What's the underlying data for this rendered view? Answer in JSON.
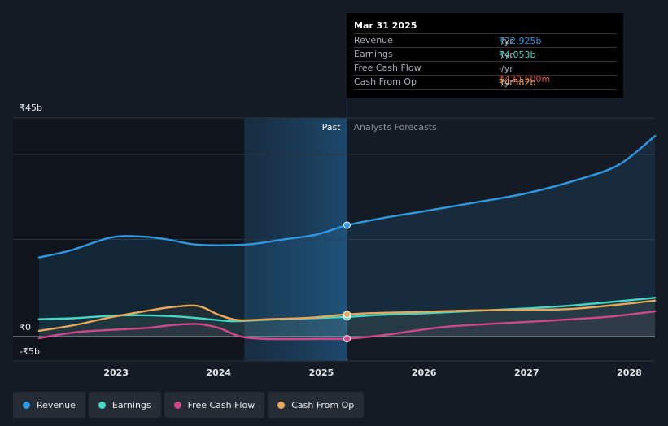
{
  "chart_data": {
    "type": "line",
    "currency_unit": "₹ billions",
    "y_axis": {
      "ylim": [
        -5,
        45
      ],
      "ticks": [
        {
          "value": 45,
          "label": "₹45b"
        },
        {
          "value": 0,
          "label": "₹0"
        },
        {
          "value": -5,
          "label": "-₹5b"
        }
      ]
    },
    "x_axis": {
      "range": [
        2022.25,
        2028.25
      ],
      "ticks": [
        "2023",
        "2024",
        "2025",
        "2026",
        "2027",
        "2028"
      ]
    },
    "past_label": "Past",
    "forecast_label": "Analysts Forecasts",
    "past_region_start": 2024.25,
    "divider_x": 2025.25,
    "series": [
      {
        "name": "Revenue",
        "color": "#2e98e2",
        "area": true,
        "points": [
          [
            2022.25,
            16.3
          ],
          [
            2022.55,
            17.7
          ],
          [
            2022.95,
            20.4
          ],
          [
            2023.25,
            20.6
          ],
          [
            2023.5,
            20.0
          ],
          [
            2023.75,
            19.0
          ],
          [
            2024.0,
            18.8
          ],
          [
            2024.3,
            19.0
          ],
          [
            2024.6,
            19.9
          ],
          [
            2024.95,
            21.0
          ],
          [
            2025.25,
            22.925
          ],
          [
            2025.6,
            24.4
          ],
          [
            2026.0,
            25.8
          ],
          [
            2026.5,
            27.6
          ],
          [
            2027.0,
            29.5
          ],
          [
            2027.5,
            32.3
          ],
          [
            2027.9,
            35.4
          ],
          [
            2028.25,
            41.3
          ]
        ]
      },
      {
        "name": "Earnings",
        "color": "#45d7c5",
        "points": [
          [
            2022.25,
            3.6
          ],
          [
            2022.6,
            3.8
          ],
          [
            2022.95,
            4.3
          ],
          [
            2023.25,
            4.4
          ],
          [
            2023.55,
            4.2
          ],
          [
            2023.8,
            3.8
          ],
          [
            2024.1,
            3.2
          ],
          [
            2024.3,
            3.3
          ],
          [
            2024.6,
            3.6
          ],
          [
            2024.9,
            3.8
          ],
          [
            2025.25,
            4.053
          ],
          [
            2025.6,
            4.5
          ],
          [
            2026.0,
            4.8
          ],
          [
            2026.5,
            5.3
          ],
          [
            2027.0,
            5.8
          ],
          [
            2027.5,
            6.5
          ],
          [
            2028.25,
            8.0
          ]
        ]
      },
      {
        "name": "Free Cash Flow",
        "color": "#d0488a",
        "points": [
          [
            2022.25,
            -0.3
          ],
          [
            2022.6,
            0.9
          ],
          [
            2022.95,
            1.4
          ],
          [
            2023.3,
            1.8
          ],
          [
            2023.55,
            2.4
          ],
          [
            2023.8,
            2.6
          ],
          [
            2024.0,
            1.8
          ],
          [
            2024.2,
            0.1
          ],
          [
            2024.4,
            -0.4
          ],
          [
            2024.7,
            -0.5
          ],
          [
            2025.0,
            -0.45
          ],
          [
            2025.25,
            -0.4205
          ],
          [
            2025.6,
            0.3
          ],
          [
            2026.0,
            1.5
          ],
          [
            2026.3,
            2.2
          ],
          [
            2026.8,
            2.8
          ],
          [
            2027.3,
            3.4
          ],
          [
            2027.8,
            4.1
          ],
          [
            2028.25,
            5.2
          ]
        ]
      },
      {
        "name": "Cash From Op",
        "color": "#e8a759",
        "points": [
          [
            2022.25,
            1.2
          ],
          [
            2022.6,
            2.4
          ],
          [
            2022.95,
            4.0
          ],
          [
            2023.3,
            5.3
          ],
          [
            2023.55,
            6.1
          ],
          [
            2023.8,
            6.3
          ],
          [
            2024.0,
            4.5
          ],
          [
            2024.2,
            3.4
          ],
          [
            2024.5,
            3.6
          ],
          [
            2024.9,
            3.9
          ],
          [
            2025.25,
            4.582
          ],
          [
            2025.6,
            4.9
          ],
          [
            2026.0,
            5.1
          ],
          [
            2026.5,
            5.4
          ],
          [
            2027.0,
            5.5
          ],
          [
            2027.5,
            5.8
          ],
          [
            2028.25,
            7.4
          ]
        ]
      }
    ],
    "tooltip": {
      "date": "Mar 31 2025",
      "unit": "/yr",
      "rows": [
        {
          "label": "Revenue",
          "value": "₹22.925b",
          "color": "#2e98e2"
        },
        {
          "label": "Earnings",
          "value": "₹4.053b",
          "color": "#45d7c5"
        },
        {
          "label": "Free Cash Flow",
          "value": "-₹420.500m",
          "color": "#e84a4a"
        },
        {
          "label": "Cash From Op",
          "value": "₹4.582b",
          "color": "#e8a759"
        }
      ]
    }
  },
  "legend": [
    {
      "label": "Revenue",
      "color": "#2e98e2"
    },
    {
      "label": "Earnings",
      "color": "#45d7c5"
    },
    {
      "label": "Free Cash Flow",
      "color": "#d0488a"
    },
    {
      "label": "Cash From Op",
      "color": "#e8a759"
    }
  ]
}
